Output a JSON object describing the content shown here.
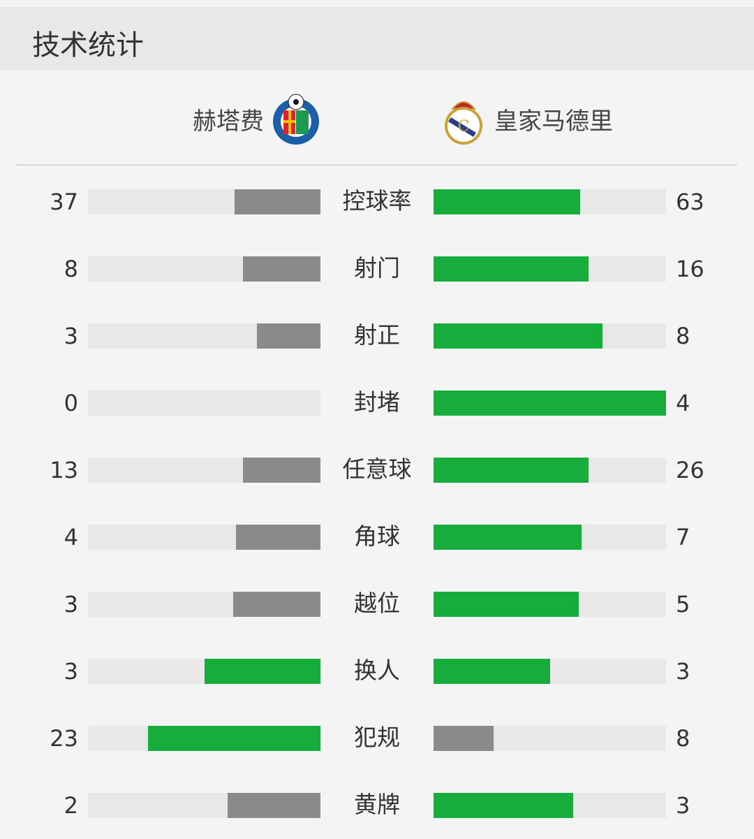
{
  "title": "技术统计",
  "home": {
    "name": "赫塔费",
    "logo": "getafe-crest",
    "logo_text": "GETAFE C.F. S.A.D."
  },
  "away": {
    "name": "皇家马德里",
    "logo": "real-madrid-crest"
  },
  "colors": {
    "winner": "#17ad3c",
    "loser": "#8a8a8a",
    "track": "#e8e8e8"
  },
  "stats": [
    {
      "label": "控球率",
      "home": 37,
      "away": 63
    },
    {
      "label": "射门",
      "home": 8,
      "away": 16
    },
    {
      "label": "射正",
      "home": 3,
      "away": 8
    },
    {
      "label": "封堵",
      "home": 0,
      "away": 4
    },
    {
      "label": "任意球",
      "home": 13,
      "away": 26
    },
    {
      "label": "角球",
      "home": 4,
      "away": 7
    },
    {
      "label": "越位",
      "home": 3,
      "away": 5
    },
    {
      "label": "换人",
      "home": 3,
      "away": 3
    },
    {
      "label": "犯规",
      "home": 23,
      "away": 8
    },
    {
      "label": "黄牌",
      "home": 2,
      "away": 3
    }
  ]
}
